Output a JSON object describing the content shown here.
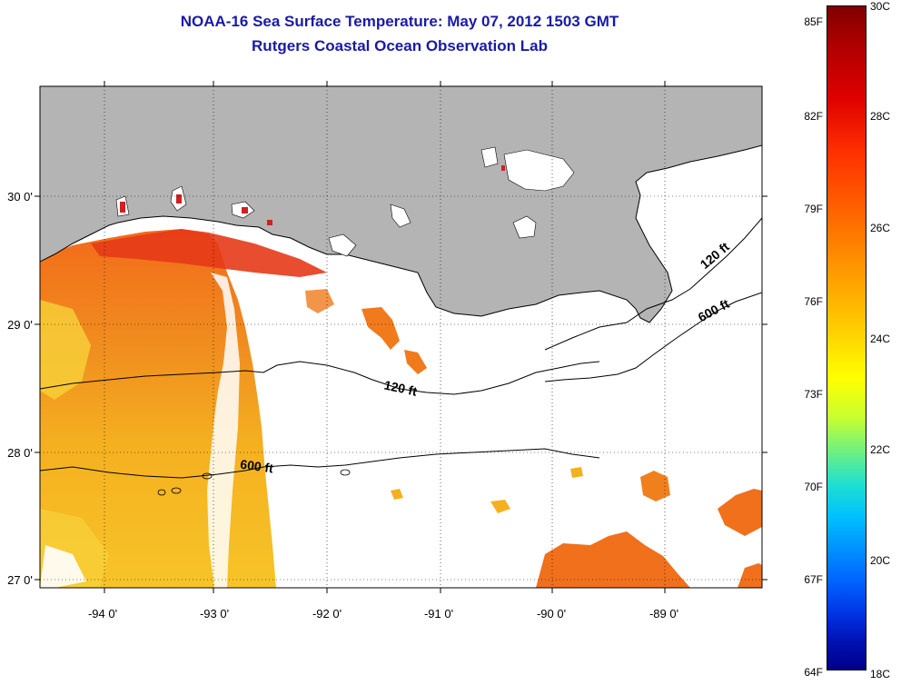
{
  "title": "NOAA-16 Sea Surface Temperature:  May 07, 2012 1503 GMT",
  "subtitle": "Rutgers Coastal Ocean Observation Lab",
  "axes": {
    "lon_labels": [
      "-94 0'",
      "-93 0'",
      "-92 0'",
      "-91 0'",
      "-90 0'",
      "-89 0'"
    ],
    "lat_labels": [
      "30 0'",
      "29 0'",
      "28 0'",
      "27 0'"
    ]
  },
  "isobaths": [
    "120 ft",
    "600 ft",
    "120 ft",
    "600 ft"
  ],
  "colorbar": {
    "fahrenheit": [
      "85F",
      "82F",
      "79F",
      "76F",
      "73F",
      "70F",
      "67F",
      "64F"
    ],
    "celsius": [
      "30C",
      "28C",
      "26C",
      "24C",
      "22C",
      "20C",
      "18C"
    ],
    "range_c": [
      18,
      30
    ]
  },
  "colors": {
    "land": "#b4b4b4",
    "title": "#1a1aa6",
    "sst_warm": "#f07018",
    "sst_mid": "#f5b820",
    "sst_hot": "#e8201a"
  }
}
